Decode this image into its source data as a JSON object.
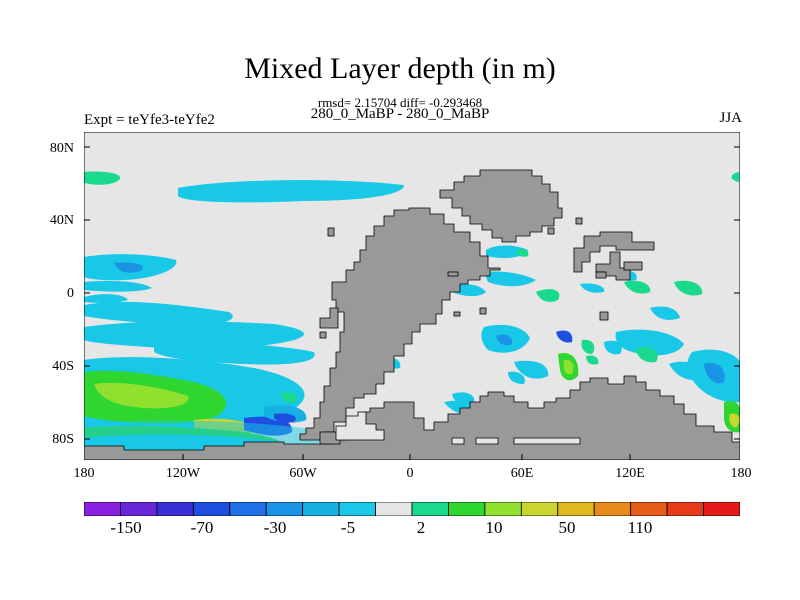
{
  "title": "Mixed Layer depth (in m)",
  "stats": "rmsd= 2.15704 diff= -0.293468",
  "subtitle": "280_0_MaBP - 280_0_MaBP",
  "left_label": "Expt = teYfe3-teYfe2",
  "right_label": "JJA",
  "axes": {
    "lat_ticks": [
      "80N",
      "40N",
      "0",
      "40S",
      "80S"
    ],
    "lon_ticks": [
      "180",
      "120W",
      "60W",
      "0",
      "60E",
      "120E",
      "180"
    ]
  },
  "colorbar": {
    "colors": [
      "#8a1fe0",
      "#6a26d9",
      "#3a2fd6",
      "#1e4fe0",
      "#1f6fe6",
      "#1a93e6",
      "#16b0e3",
      "#19c7e6",
      "#e6e6e6",
      "#19d98c",
      "#2fd62f",
      "#8fe02f",
      "#c8d62f",
      "#e0b81f",
      "#e68a1a",
      "#e65c19",
      "#e63a19",
      "#e61919"
    ],
    "labels": [
      "-150",
      "-70",
      "-30",
      "-5",
      "2",
      "10",
      "50",
      "110"
    ]
  },
  "colors": {
    "background": "#e6e6e6",
    "land": "#999999",
    "coast_outline": "#000000"
  }
}
